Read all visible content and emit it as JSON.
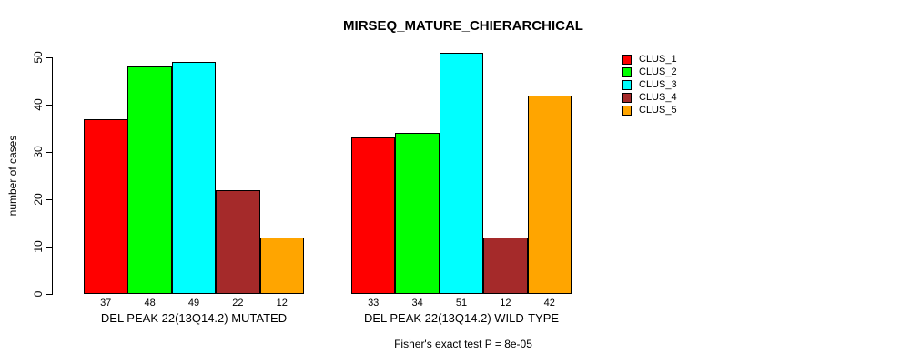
{
  "chart_data": {
    "type": "bar",
    "title": "MIRSEQ_MATURE_CHIERARCHICAL",
    "xlabel": "",
    "ylabel": "number of cases",
    "ylim": [
      0,
      50
    ],
    "yticks": [
      0,
      10,
      20,
      30,
      40,
      50
    ],
    "grid": false,
    "bar_value_labels": true,
    "legend_position": "top-right",
    "categories": [
      "DEL PEAK 22(13Q14.2) MUTATED",
      "DEL PEAK 22(13Q14.2) WILD-TYPE"
    ],
    "series": [
      {
        "name": "CLUS_1",
        "color": "#FF0000",
        "values": [
          37,
          33
        ]
      },
      {
        "name": "CLUS_2",
        "color": "#00FF00",
        "values": [
          48,
          34
        ]
      },
      {
        "name": "CLUS_3",
        "color": "#00FFFF",
        "values": [
          49,
          51
        ]
      },
      {
        "name": "CLUS_4",
        "color": "#A52A2A",
        "values": [
          22,
          12
        ]
      },
      {
        "name": "CLUS_5",
        "color": "#FFA500",
        "values": [
          12,
          42
        ]
      }
    ],
    "annotation": "Fisher's exact test P = 8e-05"
  }
}
